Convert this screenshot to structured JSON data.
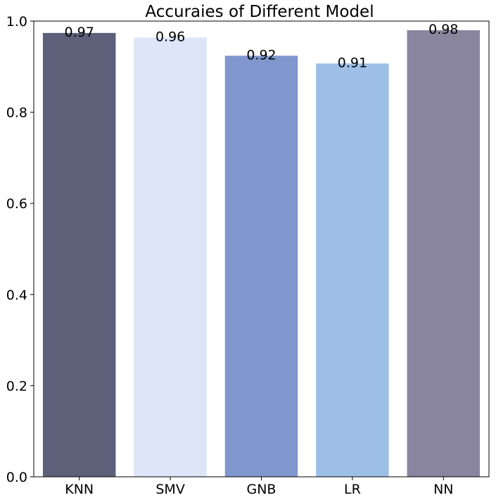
{
  "chart_data": {
    "type": "bar",
    "title": "Accuraies of Different Model",
    "xlabel": "",
    "ylabel": "",
    "categories": [
      "KNN",
      "SMV",
      "GNB",
      "LR",
      "NN"
    ],
    "values": [
      0.974,
      0.964,
      0.924,
      0.907,
      0.98
    ],
    "value_labels": [
      "0.97",
      "0.96",
      "0.92",
      "0.91",
      "0.98"
    ],
    "colors": [
      "#5d6079",
      "#dde6f9",
      "#8097ce",
      "#9dbfe7",
      "#8a859f"
    ],
    "ylim": [
      0,
      1
    ],
    "yticks": [
      0.0,
      0.2,
      0.4,
      0.6,
      0.8,
      1.0
    ],
    "ytick_labels": [
      "0.0",
      "0.2",
      "0.4",
      "0.6",
      "0.8",
      "1.0"
    ],
    "grid": false,
    "legend": "none"
  }
}
